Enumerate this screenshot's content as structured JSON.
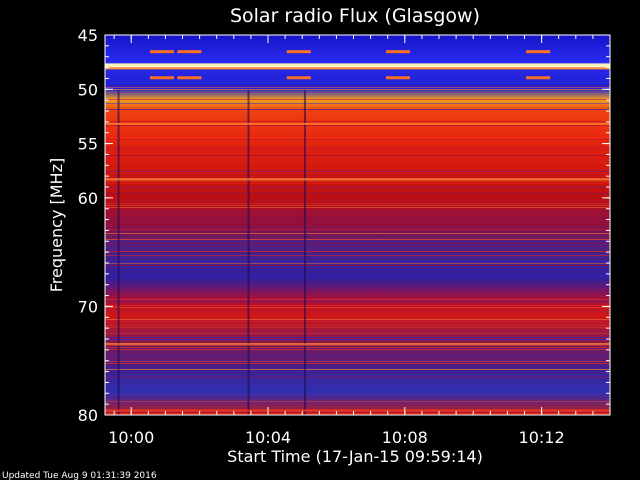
{
  "chart_data": {
    "type": "heatmap",
    "title": "Solar radio Flux (Glasgow)",
    "xlabel": "Start Time (17-Jan-15 09:59:14)",
    "ylabel": "Frequency [MHz]",
    "x_unit": "time",
    "x_ticks": [
      "10:00",
      "10:04",
      "10:08",
      "10:12"
    ],
    "x_tick_minutes": [
      10.0,
      14.0,
      18.0,
      22.0
    ],
    "x_range_minutes": [
      9.233,
      24.0
    ],
    "y_ticks": [
      45,
      50,
      55,
      60,
      70,
      80
    ],
    "y_range": [
      45,
      80
    ],
    "footer": "Updated Tue Aug  9 01:31:39 2016",
    "segment_breaks_minutes": [
      9.6,
      13.4,
      15.05
    ],
    "features": {
      "intense_line_mhz": 47.8,
      "burst_marks_minutes": [
        10.9,
        11.7,
        14.9,
        17.8,
        21.9
      ]
    }
  }
}
